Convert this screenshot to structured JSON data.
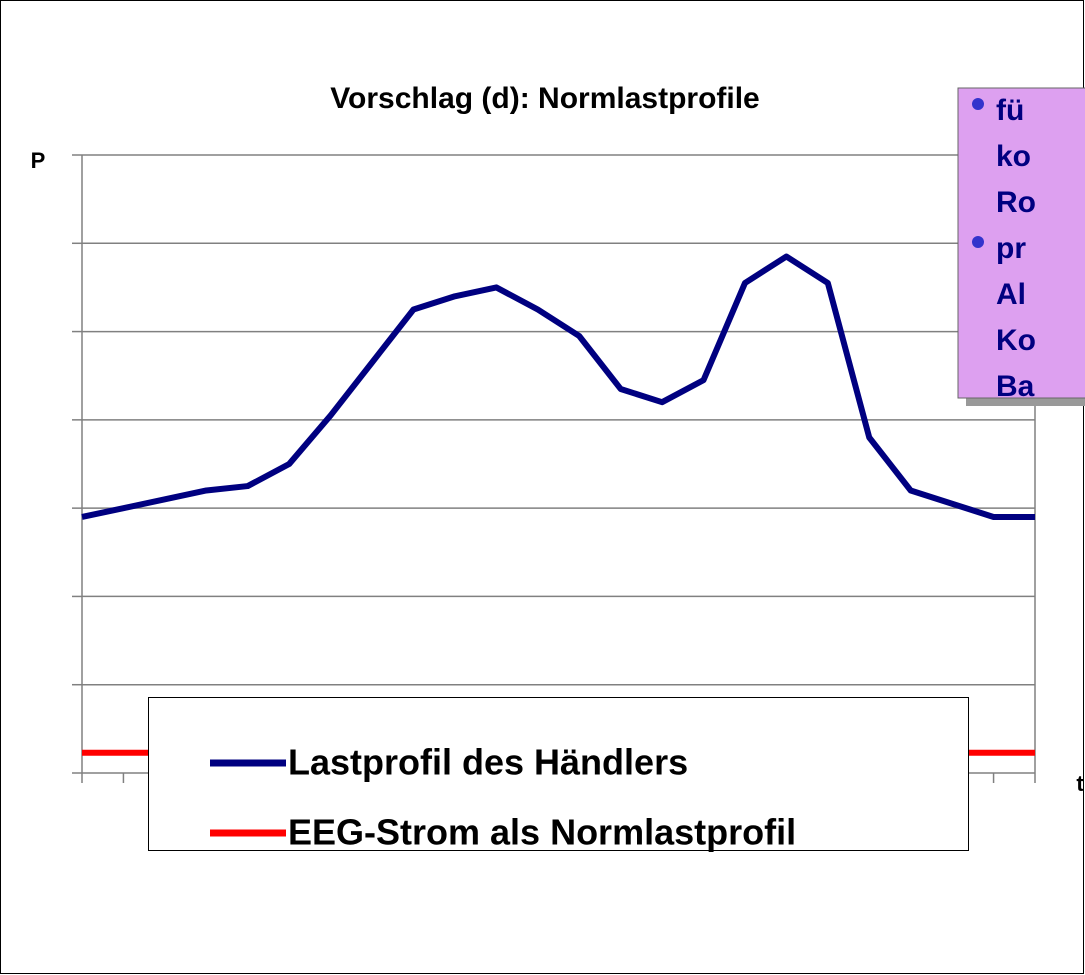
{
  "chart_data": {
    "type": "line",
    "title": "Vorschlag (d): Normlastprofile",
    "y_label": "P",
    "x_label": "t",
    "x": [
      0,
      1,
      2,
      3,
      4,
      5,
      6,
      7,
      8,
      9,
      10,
      11,
      12,
      13,
      14,
      15,
      16,
      17,
      18,
      19,
      20,
      21,
      22,
      23
    ],
    "xlim": [
      0,
      23
    ],
    "ylim": [
      0,
      7
    ],
    "yticks": [
      0,
      1,
      2,
      3,
      4,
      5,
      6,
      7
    ],
    "grid": true,
    "series": [
      {
        "name": "Lastprofil des Händlers",
        "color": "#000080",
        "values": [
          2.9,
          3.0,
          3.1,
          3.2,
          3.25,
          3.5,
          4.05,
          4.65,
          5.25,
          5.4,
          5.5,
          5.25,
          4.95,
          4.35,
          4.2,
          4.45,
          5.55,
          5.85,
          5.55,
          3.8,
          3.2,
          3.05,
          2.9,
          2.9
        ]
      },
      {
        "name": "EEG-Strom als Normlastprofil",
        "color": "#ff0000",
        "values": [
          0.23,
          0.23,
          0.23,
          0.23,
          0.23,
          0.23,
          0.6,
          0.6,
          0.6,
          0.6,
          0.6,
          0.6,
          0.6,
          0.35,
          0.35,
          0.35,
          0.8,
          0.8,
          0.8,
          0.35,
          0.23,
          0.23,
          0.23,
          0.23
        ]
      }
    ]
  },
  "textbox": {
    "lines": [
      "fü",
      "ko",
      "Ro",
      "pr",
      "Al",
      "Ko",
      "Ba"
    ],
    "bullets": [
      0,
      3
    ]
  }
}
